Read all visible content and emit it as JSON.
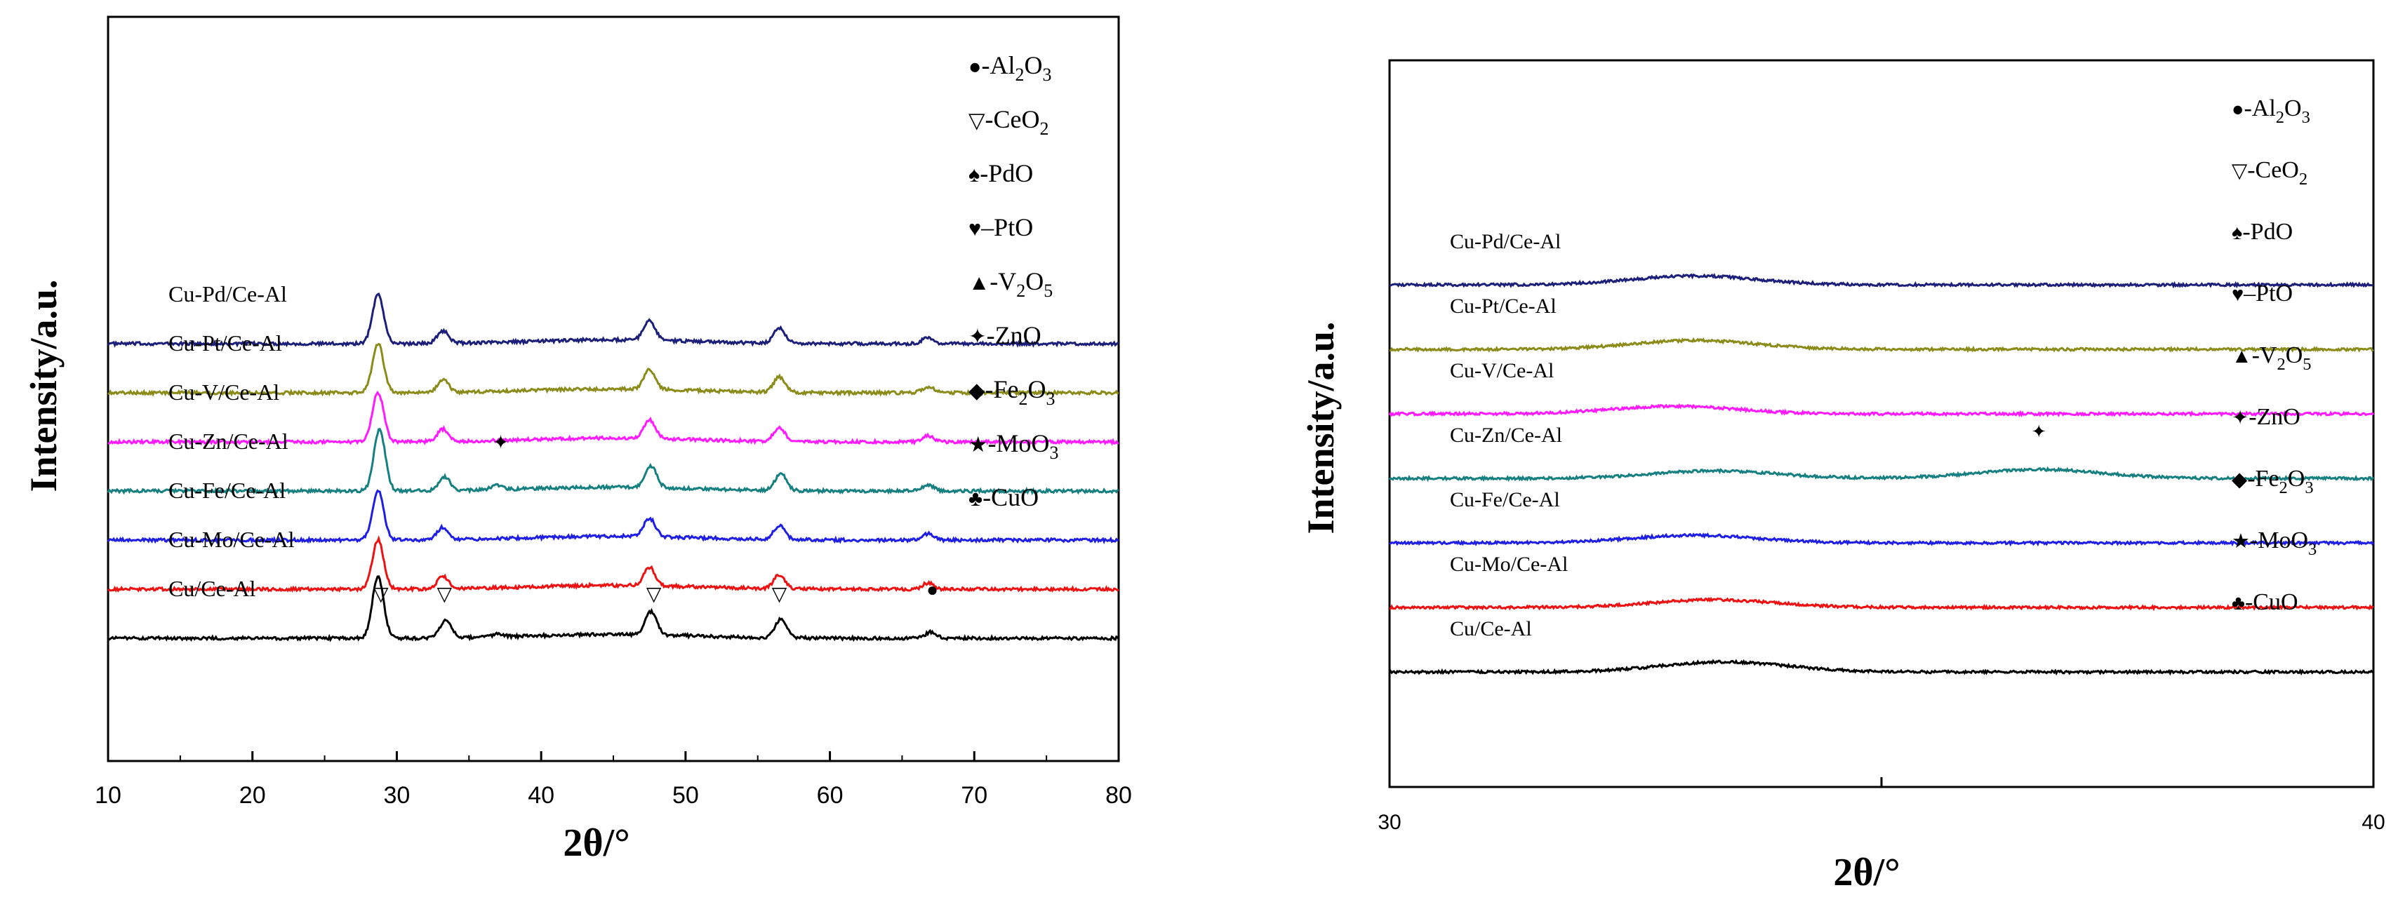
{
  "chart_data": [
    {
      "type": "line",
      "title": "",
      "xlabel": "2θ/°",
      "ylabel": "Intensity/a.u.",
      "xlim": [
        10,
        80
      ],
      "xticks": [
        10,
        20,
        30,
        40,
        50,
        60,
        70,
        80
      ],
      "x_tick_labels": [
        "10",
        "20",
        "30",
        "40",
        "50",
        "60",
        "70",
        "80"
      ],
      "y_ticks_shown": false,
      "series": [
        {
          "name": "Cu-Pd/Ce-Al",
          "color": "#1b1f7a",
          "offset": 6.0,
          "scale": 0.55,
          "peaks": [
            [
              28.7,
              3.2
            ],
            [
              33.2,
              0.8
            ],
            [
              47.5,
              1.3
            ],
            [
              56.5,
              1.0
            ],
            [
              66.8,
              0.4
            ]
          ]
        },
        {
          "name": "Cu-Pt/Ce-Al",
          "color": "#8b8b1a",
          "offset": 5.0,
          "scale": 0.55,
          "peaks": [
            [
              28.7,
              3.2
            ],
            [
              33.2,
              0.8
            ],
            [
              47.5,
              1.3
            ],
            [
              56.5,
              1.0
            ],
            [
              66.8,
              0.4
            ]
          ]
        },
        {
          "name": "Cu-V/Ce-Al",
          "color": "#ff1aff",
          "offset": 4.0,
          "scale": 0.55,
          "peaks": [
            [
              28.7,
              3.2
            ],
            [
              33.2,
              0.8
            ],
            [
              47.5,
              1.2
            ],
            [
              56.5,
              0.9
            ],
            [
              66.8,
              0.4
            ]
          ]
        },
        {
          "name": "Cu-Zn/Ce-Al",
          "color": "#168080",
          "offset": 3.0,
          "scale": 0.55,
          "peaks": [
            [
              28.8,
              4.0
            ],
            [
              33.3,
              0.9
            ],
            [
              36.9,
              0.3
            ],
            [
              47.6,
              1.4
            ],
            [
              56.6,
              1.1
            ],
            [
              66.8,
              0.4
            ]
          ]
        },
        {
          "name": "Cu-Fe/Ce-Al",
          "color": "#1e1ee6",
          "offset": 2.0,
          "scale": 0.55,
          "peaks": [
            [
              28.7,
              3.2
            ],
            [
              33.2,
              0.8
            ],
            [
              47.5,
              1.2
            ],
            [
              56.5,
              0.9
            ],
            [
              66.8,
              0.4
            ]
          ]
        },
        {
          "name": "Cu-Mo/Ce-Al",
          "color": "#ee1111",
          "offset": 1.0,
          "scale": 0.55,
          "peaks": [
            [
              28.7,
              3.2
            ],
            [
              33.2,
              0.8
            ],
            [
              47.5,
              1.2
            ],
            [
              56.5,
              0.9
            ],
            [
              66.8,
              0.4
            ]
          ]
        },
        {
          "name": "Cu/Ce-Al",
          "color": "#000000",
          "offset": 0.0,
          "scale": 0.55,
          "peaks": [
            [
              28.7,
              4.0
            ],
            [
              33.4,
              1.2
            ],
            [
              37.0,
              0.2
            ],
            [
              47.6,
              1.5
            ],
            [
              56.6,
              1.2
            ],
            [
              67.0,
              0.4
            ]
          ]
        }
      ],
      "annotations": [
        {
          "symbol": "▽",
          "x": 28.9,
          "series": "Cu/Ce-Al"
        },
        {
          "symbol": "▽",
          "x": 33.3,
          "series": "Cu/Ce-Al"
        },
        {
          "symbol": "▽",
          "x": 47.8,
          "series": "Cu/Ce-Al"
        },
        {
          "symbol": "▽",
          "x": 56.5,
          "series": "Cu/Ce-Al"
        },
        {
          "symbol": "●",
          "x": 67.1,
          "series": "Cu/Ce-Al"
        },
        {
          "symbol": "✦",
          "x": 37.2,
          "series": "Cu-Zn/Ce-Al"
        }
      ],
      "legend": [
        {
          "symbol": "●",
          "text": "-Al",
          "sub1": "2",
          "text2": "O",
          "sub2": "3"
        },
        {
          "symbol": "▽",
          "text": "-CeO",
          "sub1": "2",
          "text2": "",
          "sub2": ""
        },
        {
          "symbol": "♠",
          "text": "-PdO",
          "sub1": "",
          "text2": "",
          "sub2": ""
        },
        {
          "symbol": "♥",
          "text": "–PtO",
          "sub1": "",
          "text2": "",
          "sub2": ""
        },
        {
          "symbol": "▲",
          "text": "-V",
          "sub1": "2",
          "text2": "O",
          "sub2": "5"
        },
        {
          "symbol": "✦",
          "text": "-ZnO",
          "sub1": "",
          "text2": "",
          "sub2": ""
        },
        {
          "symbol": "◆",
          "text": "-Fe",
          "sub1": "2",
          "text2": "O",
          "sub2": "3"
        },
        {
          "symbol": "★",
          "text": "-MoO",
          "sub1": "3",
          "text2": "",
          "sub2": ""
        },
        {
          "symbol": "♣",
          "text": "-CuO",
          "sub1": "",
          "text2": "",
          "sub2": ""
        }
      ]
    },
    {
      "type": "line",
      "title": "",
      "xlabel": "2θ/°",
      "ylabel": "Intensity/a.u.",
      "xlim": [
        30,
        40
      ],
      "xticks": [
        30,
        35,
        40
      ],
      "x_tick_labels": [
        "30",
        "",
        "40"
      ],
      "y_ticks_shown": false,
      "series": [
        {
          "name": "Cu-Pd/Ce-Al",
          "color": "#1b1f7a",
          "offset": 6.0,
          "peaks": [
            [
              33.1,
              0.7
            ]
          ]
        },
        {
          "name": "Cu-Pt/Ce-Al",
          "color": "#8b8b1a",
          "offset": 5.0,
          "peaks": [
            [
              33.1,
              0.7
            ]
          ]
        },
        {
          "name": "Cu-V/Ce-Al",
          "color": "#ff1aff",
          "offset": 4.0,
          "peaks": [
            [
              32.9,
              0.6
            ]
          ]
        },
        {
          "name": "Cu-Zn/Ce-Al",
          "color": "#168080",
          "offset": 3.0,
          "peaks": [
            [
              33.3,
              0.6
            ],
            [
              36.6,
              0.7
            ]
          ]
        },
        {
          "name": "Cu-Fe/Ce-Al",
          "color": "#1e1ee6",
          "offset": 2.0,
          "peaks": [
            [
              33.1,
              0.6
            ]
          ]
        },
        {
          "name": "Cu-Mo/Ce-Al",
          "color": "#ee1111",
          "offset": 1.0,
          "peaks": [
            [
              33.3,
              0.6
            ]
          ]
        },
        {
          "name": "Cu/Ce-Al",
          "color": "#000000",
          "offset": 0.0,
          "peaks": [
            [
              33.4,
              0.8
            ]
          ]
        }
      ],
      "annotations": [
        {
          "symbol": "✦",
          "x": 36.6,
          "series": "Cu-Zn/Ce-Al"
        }
      ],
      "legend": [
        {
          "symbol": "●",
          "text": "-Al",
          "sub1": "2",
          "text2": "O",
          "sub2": "3"
        },
        {
          "symbol": "▽",
          "text": "-CeO",
          "sub1": "2",
          "text2": "",
          "sub2": ""
        },
        {
          "symbol": "♠",
          "text": "-PdO",
          "sub1": "",
          "text2": "",
          "sub2": ""
        },
        {
          "symbol": "♥",
          "text": "–PtO",
          "sub1": "",
          "text2": "",
          "sub2": ""
        },
        {
          "symbol": "▲",
          "text": "-V",
          "sub1": "2",
          "text2": "O",
          "sub2": "5"
        },
        {
          "symbol": "✦",
          "text": "-ZnO",
          "sub1": "",
          "text2": "",
          "sub2": ""
        },
        {
          "symbol": "◆",
          "text": "-Fe",
          "sub1": "2",
          "text2": "O",
          "sub2": "3"
        },
        {
          "symbol": "★",
          "text": "-MoO",
          "sub1": "3",
          "text2": "",
          "sub2": ""
        },
        {
          "symbol": "♣",
          "text": "-CuO",
          "sub1": "",
          "text2": "",
          "sub2": ""
        }
      ]
    }
  ]
}
